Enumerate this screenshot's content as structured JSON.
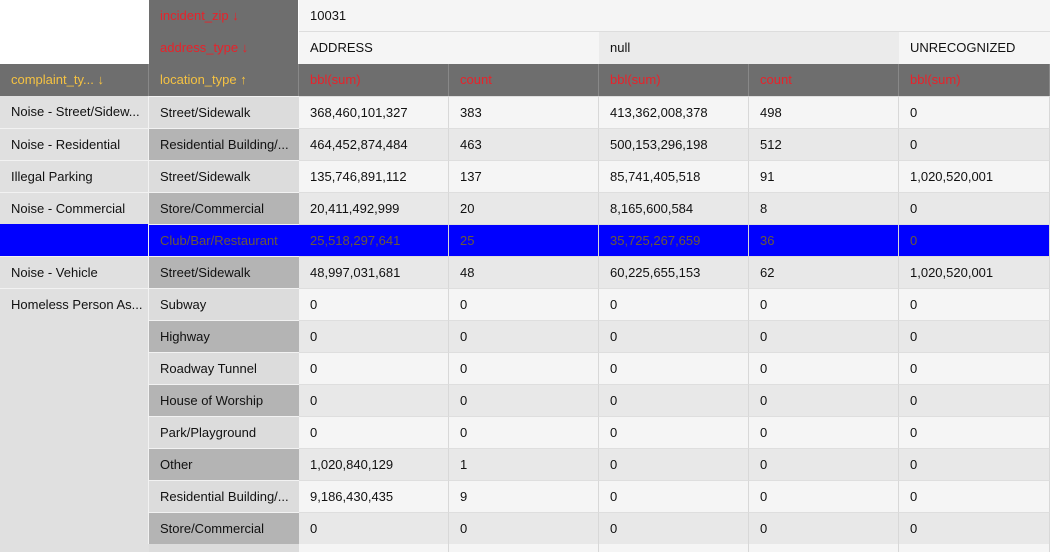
{
  "header": {
    "fields": [
      "incident_zip ↓",
      "address_type ↓"
    ],
    "incident_zip": "10031",
    "address_types": [
      "ADDRESS",
      "null",
      "UNRECOGNIZED"
    ],
    "columns": [
      "complaint_ty... ↓",
      "location_type ↑",
      "bbl(sum)",
      "count",
      "bbl(sum)",
      "count",
      "bbl(sum)"
    ]
  },
  "rows": [
    {
      "complaint_type": "Noise - Street/Sidew...",
      "location_type": "Street/Sidewalk",
      "cells": [
        "368,460,101,327",
        "383",
        "413,362,008,378",
        "498",
        "0"
      ]
    },
    {
      "complaint_type": "Noise - Residential",
      "location_type": "Residential Building/...",
      "cells": [
        "464,452,874,484",
        "463",
        "500,153,296,198",
        "512",
        "0"
      ]
    },
    {
      "complaint_type": "Illegal Parking",
      "location_type": "Street/Sidewalk",
      "cells": [
        "135,746,891,112",
        "137",
        "85,741,405,518",
        "91",
        "1,020,520,001"
      ]
    },
    {
      "complaint_type": "Noise - Commercial",
      "location_type": "Store/Commercial",
      "cells": [
        "20,411,492,999",
        "20",
        "8,165,600,584",
        "8",
        "0"
      ]
    },
    {
      "location_type": "Club/Bar/Restaurant",
      "cells": [
        "25,518,297,641",
        "25",
        "35,725,267,659",
        "36",
        "0"
      ],
      "selected": true
    },
    {
      "complaint_type": "Noise - Vehicle",
      "location_type": "Street/Sidewalk",
      "cells": [
        "48,997,031,681",
        "48",
        "60,225,655,153",
        "62",
        "1,020,520,001"
      ]
    },
    {
      "complaint_type": "Homeless Person As...",
      "location_type": "Subway",
      "cells": [
        "0",
        "0",
        "0",
        "0",
        "0"
      ]
    },
    {
      "location_type": "Highway",
      "cells": [
        "0",
        "0",
        "0",
        "0",
        "0"
      ]
    },
    {
      "location_type": "Roadway Tunnel",
      "cells": [
        "0",
        "0",
        "0",
        "0",
        "0"
      ]
    },
    {
      "location_type": "House of Worship",
      "cells": [
        "0",
        "0",
        "0",
        "0",
        "0"
      ]
    },
    {
      "location_type": "Park/Playground",
      "cells": [
        "0",
        "0",
        "0",
        "0",
        "0"
      ]
    },
    {
      "location_type": "Other",
      "cells": [
        "1,020,840,129",
        "1",
        "0",
        "0",
        "0"
      ]
    },
    {
      "location_type": "Residential Building/...",
      "cells": [
        "9,186,430,435",
        "9",
        "0",
        "0",
        "0"
      ]
    },
    {
      "location_type": "Store/Commercial",
      "cells": [
        "0",
        "0",
        "0",
        "0",
        "0"
      ]
    }
  ]
}
